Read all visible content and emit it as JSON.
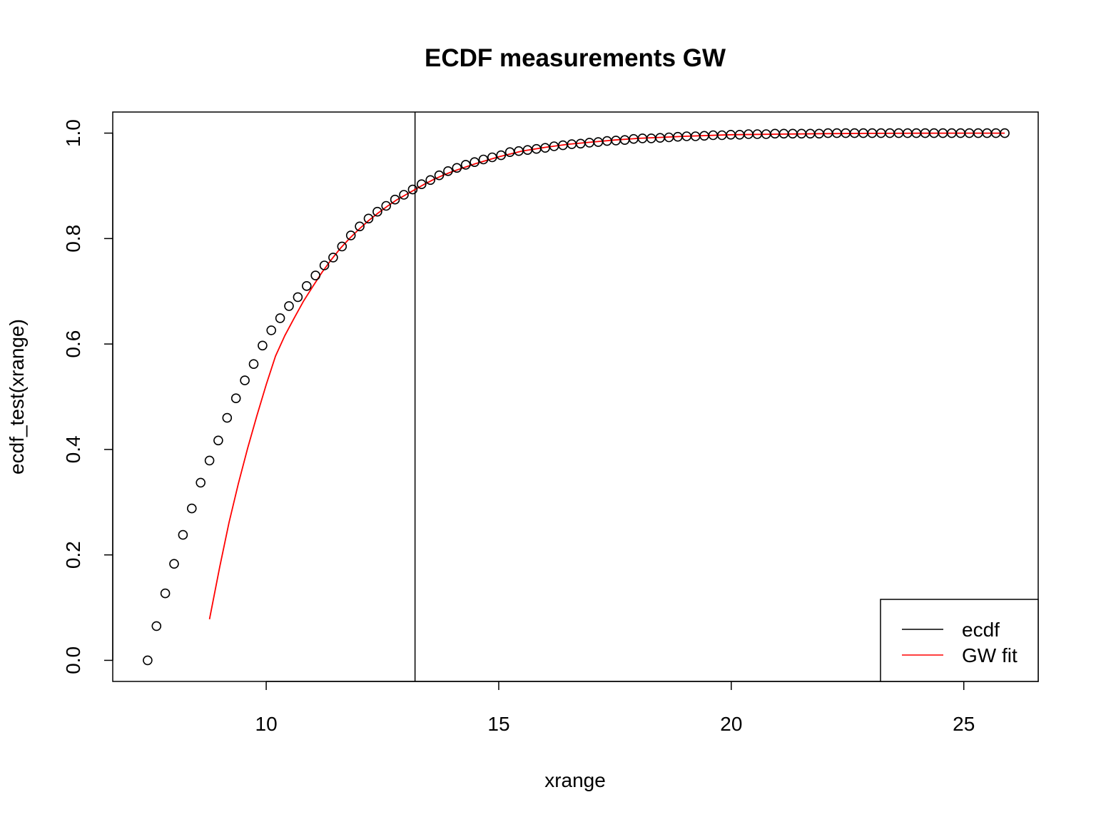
{
  "chart_data": {
    "type": "scatter",
    "title": "ECDF measurements GW",
    "xlabel": "xrange",
    "ylabel": "ecdf_test(xrange)",
    "xlim": [
      6.7,
      26.6
    ],
    "ylim": [
      -0.04,
      1.04
    ],
    "xticks": [
      10,
      15,
      20,
      25
    ],
    "yticks": [
      0.0,
      0.2,
      0.4,
      0.6,
      0.8,
      1.0
    ],
    "xtick_labels": [
      "10",
      "15",
      "20",
      "25"
    ],
    "ytick_labels": [
      "0.0",
      "0.2",
      "0.4",
      "0.6",
      "0.8",
      "1.0"
    ],
    "grid": false,
    "legend_position": "bottom-right",
    "vline_x": 13.2,
    "colors": {
      "ecdf": "#000000",
      "fit": "#ff0000"
    },
    "series": [
      {
        "name": "ecdf",
        "kind": "points",
        "x": [
          7.45,
          7.64,
          7.83,
          8.02,
          8.21,
          8.4,
          8.59,
          8.78,
          8.97,
          9.16,
          9.35,
          9.54,
          9.73,
          9.92,
          10.11,
          10.3,
          10.49,
          10.68,
          10.87,
          11.06,
          11.25,
          11.44,
          11.63,
          11.82,
          12.01,
          12.2,
          12.39,
          12.58,
          12.77,
          12.96,
          13.15,
          13.34,
          13.53,
          13.72,
          13.91,
          14.1,
          14.29,
          14.48,
          14.67,
          14.86,
          15.05,
          15.24,
          15.43,
          15.62,
          15.81,
          16.0,
          16.19,
          16.38,
          16.57,
          16.76,
          16.95,
          17.14,
          17.33,
          17.52,
          17.71,
          17.9,
          18.09,
          18.28,
          18.47,
          18.66,
          18.85,
          19.04,
          19.23,
          19.42,
          19.61,
          19.8,
          19.99,
          20.18,
          20.37,
          20.56,
          20.75,
          20.94,
          21.13,
          21.32,
          21.51,
          21.7,
          21.89,
          22.08,
          22.27,
          22.46,
          22.65,
          22.84,
          23.03,
          23.22,
          23.41,
          23.6,
          23.79,
          23.98,
          24.17,
          24.36,
          24.55,
          24.74,
          24.93,
          25.12,
          25.31,
          25.5,
          25.69,
          25.88
        ],
        "y": [
          0.0,
          0.065,
          0.127,
          0.183,
          0.238,
          0.288,
          0.337,
          0.379,
          0.417,
          0.46,
          0.497,
          0.531,
          0.562,
          0.597,
          0.626,
          0.649,
          0.672,
          0.689,
          0.71,
          0.73,
          0.749,
          0.764,
          0.785,
          0.806,
          0.823,
          0.838,
          0.851,
          0.862,
          0.874,
          0.883,
          0.893,
          0.903,
          0.911,
          0.92,
          0.928,
          0.934,
          0.94,
          0.945,
          0.95,
          0.954,
          0.958,
          0.964,
          0.966,
          0.968,
          0.97,
          0.972,
          0.975,
          0.977,
          0.979,
          0.98,
          0.982,
          0.983,
          0.985,
          0.986,
          0.987,
          0.989,
          0.99,
          0.99,
          0.991,
          0.992,
          0.993,
          0.994,
          0.994,
          0.995,
          0.996,
          0.996,
          0.997,
          0.997,
          0.998,
          0.998,
          0.998,
          0.999,
          0.999,
          0.999,
          0.999,
          0.999,
          0.999,
          1.0,
          1.0,
          1.0,
          1.0,
          1.0,
          1.0,
          1.0,
          1.0,
          1.0,
          1.0,
          1.0,
          1.0,
          1.0,
          1.0,
          1.0,
          1.0,
          1.0,
          1.0,
          1.0,
          1.0,
          1.0
        ]
      },
      {
        "name": "GW fit",
        "kind": "line",
        "x": [
          8.78,
          9.0,
          9.2,
          9.4,
          9.6,
          9.8,
          10.0,
          10.2,
          10.4,
          10.6,
          10.8,
          11.0,
          11.2,
          11.4,
          11.6,
          11.8,
          12.0,
          12.2,
          12.4,
          12.6,
          12.8,
          13.0,
          13.2,
          13.4,
          13.6,
          13.8,
          14.0,
          14.5,
          15.0,
          15.5,
          16.0,
          16.5,
          17.0,
          17.5,
          18.0,
          18.5,
          19.0,
          20.0,
          21.0,
          22.0,
          23.0,
          24.0,
          25.0,
          25.88
        ],
        "y": [
          0.078,
          0.177,
          0.261,
          0.335,
          0.402,
          0.464,
          0.523,
          0.577,
          0.616,
          0.649,
          0.681,
          0.709,
          0.736,
          0.76,
          0.782,
          0.801,
          0.818,
          0.834,
          0.848,
          0.861,
          0.873,
          0.883,
          0.893,
          0.903,
          0.912,
          0.92,
          0.927,
          0.942,
          0.955,
          0.966,
          0.973,
          0.979,
          0.983,
          0.987,
          0.99,
          0.992,
          0.994,
          0.997,
          0.998,
          0.999,
          0.9995,
          0.9998,
          0.9999,
          1.0
        ]
      }
    ]
  }
}
